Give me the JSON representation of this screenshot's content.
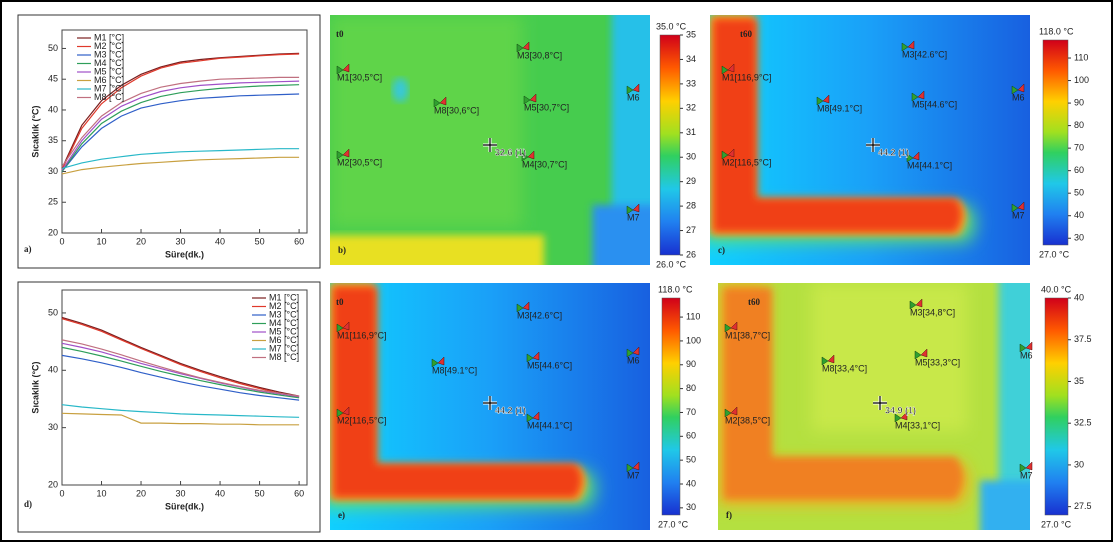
{
  "chart_data": [
    {
      "type": "line",
      "panel_label": "a)",
      "x_label": "Süre(dk.)",
      "y_label": "Sıcaklık (°C)",
      "x": [
        0,
        5,
        10,
        15,
        20,
        25,
        30,
        35,
        40,
        45,
        50,
        55,
        60
      ],
      "xlim": [
        0,
        62
      ],
      "xticks": [
        0,
        10,
        20,
        30,
        40,
        50,
        60
      ],
      "ylim": [
        20,
        53
      ],
      "yticks": [
        20,
        25,
        30,
        35,
        40,
        45,
        50
      ],
      "legend": "upper left",
      "series": [
        {
          "name": "M1 [°C]",
          "color": "#7a1f1f",
          "values": [
            30.5,
            37.5,
            41.5,
            44,
            45.8,
            47,
            47.8,
            48.2,
            48.5,
            48.7,
            48.9,
            49.1,
            49.2
          ]
        },
        {
          "name": "M2 [°C]",
          "color": "#e0392b",
          "values": [
            30.3,
            37,
            41,
            43.6,
            45.5,
            46.8,
            47.6,
            48,
            48.4,
            48.6,
            48.8,
            49,
            49.1
          ]
        },
        {
          "name": "M3 [°C]",
          "color": "#2f5fc8",
          "values": [
            30,
            34,
            37,
            39,
            40.3,
            41,
            41.5,
            41.9,
            42.1,
            42.3,
            42.4,
            42.5,
            42.6
          ]
        },
        {
          "name": "M4 [°C]",
          "color": "#2e9e5a",
          "values": [
            30,
            34.5,
            37.8,
            39.8,
            41.2,
            42.2,
            42.8,
            43.2,
            43.5,
            43.7,
            43.9,
            44,
            44.1
          ]
        },
        {
          "name": "M5 [°C]",
          "color": "#a050c8",
          "values": [
            30.2,
            35,
            38.5,
            40.6,
            42,
            43,
            43.6,
            44,
            44.2,
            44.4,
            44.5,
            44.6,
            44.7
          ]
        },
        {
          "name": "M6 [°C]",
          "color": "#c8a040",
          "values": [
            29.6,
            30.3,
            30.7,
            31,
            31.3,
            31.5,
            31.7,
            31.9,
            32,
            32.1,
            32.2,
            32.3,
            32.3
          ]
        },
        {
          "name": "M7 [°C]",
          "color": "#28b8c8",
          "values": [
            30.5,
            31.4,
            32,
            32.4,
            32.8,
            33,
            33.2,
            33.3,
            33.4,
            33.5,
            33.6,
            33.7,
            33.7
          ]
        },
        {
          "name": "M8 [°C]",
          "color": "#c07080",
          "values": [
            30.8,
            35.5,
            39,
            41.2,
            42.7,
            43.7,
            44.3,
            44.7,
            45,
            45.1,
            45.2,
            45.3,
            45.3
          ]
        }
      ]
    },
    {
      "type": "line",
      "panel_label": "d)",
      "x_label": "Süre(dk.)",
      "y_label": "Sıcaklık (°C)",
      "x": [
        0,
        5,
        10,
        15,
        20,
        25,
        30,
        35,
        40,
        45,
        50,
        55,
        60
      ],
      "xlim": [
        0,
        62
      ],
      "xticks": [
        0,
        10,
        20,
        30,
        40,
        50,
        60
      ],
      "ylim": [
        20,
        54
      ],
      "yticks": [
        20,
        30,
        40,
        50
      ],
      "legend": "upper right",
      "series": [
        {
          "name": "M1 [°C]",
          "color": "#7a1f1f",
          "values": [
            49.2,
            48.2,
            47,
            45.5,
            44,
            42.6,
            41.2,
            40,
            38.9,
            37.9,
            37,
            36.2,
            35.5
          ]
        },
        {
          "name": "M2 [°C]",
          "color": "#e0392b",
          "values": [
            49,
            48,
            46.8,
            45.3,
            43.8,
            42.4,
            41,
            39.8,
            38.7,
            37.7,
            36.8,
            36,
            35.3
          ]
        },
        {
          "name": "M3 [°C]",
          "color": "#2f5fc8",
          "values": [
            42.6,
            42,
            41.3,
            40.5,
            39.6,
            38.8,
            38,
            37.3,
            36.7,
            36.1,
            35.6,
            35.2,
            34.8
          ]
        },
        {
          "name": "M4 [°C]",
          "color": "#2e9e5a",
          "values": [
            44,
            43.3,
            42.5,
            41.6,
            40.7,
            39.8,
            39,
            38.2,
            37.5,
            36.8,
            36.2,
            35.7,
            35.2
          ]
        },
        {
          "name": "M5 [°C]",
          "color": "#a050c8",
          "values": [
            44.7,
            44,
            43.2,
            42.2,
            41.2,
            40.3,
            39.4,
            38.6,
            37.8,
            37.1,
            36.4,
            35.9,
            35.4
          ]
        },
        {
          "name": "M6 [°C]",
          "color": "#c8a040",
          "values": [
            32.5,
            32.4,
            32.3,
            32.2,
            30.8,
            30.8,
            30.7,
            30.7,
            30.6,
            30.6,
            30.5,
            30.5,
            30.5
          ]
        },
        {
          "name": "M7 [°C]",
          "color": "#28b8c8",
          "values": [
            34,
            33.6,
            33.3,
            33,
            32.8,
            32.6,
            32.4,
            32.3,
            32.2,
            32.1,
            32,
            31.9,
            31.8
          ]
        },
        {
          "name": "M8 [°C]",
          "color": "#c07080",
          "values": [
            45.3,
            44.6,
            43.7,
            42.7,
            41.6,
            40.6,
            39.6,
            38.7,
            37.9,
            37.2,
            36.5,
            36,
            35.5
          ]
        }
      ]
    }
  ],
  "thermal_panels": [
    {
      "panel_label": "b)",
      "time_label": "t0",
      "cursor_label": "32.6 (1)",
      "markers": [
        "M1[30,5°C]",
        "M2[30,5°C]",
        "M3[30,8°C]",
        "M4[30,7°C]",
        "M5[30,7°C]",
        "M6",
        "M7",
        "M8[30,6°C]"
      ],
      "colorbar": {
        "max_label": "35.0 °C",
        "min_label": "26.0 °C",
        "lim": [
          26,
          35
        ],
        "ticks": [
          26,
          27,
          28,
          29,
          30,
          31,
          32,
          33,
          34,
          35
        ]
      }
    },
    {
      "panel_label": "c)",
      "time_label": "t60",
      "cursor_label": "44.2 (1)",
      "markers": [
        "M1[116,9°C]",
        "M2[116,5°C]",
        "M3[42.6°C]",
        "M4[44.1°C]",
        "M5[44.6°C]",
        "M6",
        "M7",
        "M8[49.1°C]"
      ],
      "colorbar": {
        "max_label": "118.0 °C",
        "min_label": "27.0 °C",
        "lim": [
          27,
          118
        ],
        "ticks": [
          30,
          40,
          50,
          60,
          70,
          80,
          90,
          100,
          110
        ]
      }
    },
    {
      "panel_label": "e)",
      "time_label": "t0",
      "cursor_label": "44.2 (1)",
      "markers": [
        "M1[116,9°C]",
        "M2[116,5°C]",
        "M3[42.6°C]",
        "M4[44.1°C]",
        "M5[44.6°C]",
        "M6",
        "M7",
        "M8[49.1°C]"
      ],
      "colorbar": {
        "max_label": "118.0 °C",
        "min_label": "27.0 °C",
        "lim": [
          27,
          118
        ],
        "ticks": [
          30,
          40,
          50,
          60,
          70,
          80,
          90,
          100,
          110
        ]
      }
    },
    {
      "panel_label": "f)",
      "time_label": "t60",
      "cursor_label": "34.9 (1)",
      "markers": [
        "M1[38,7°C]",
        "M2[38,5°C]",
        "M3[34,8°C]",
        "M4[33,1°C]",
        "M5[33,3°C]",
        "M6",
        "M7",
        "M8[33,4°C]"
      ],
      "colorbar": {
        "max_label": "40.0 °C",
        "min_label": "27.0 °C",
        "lim": [
          27,
          40
        ],
        "ticks": [
          27.5,
          30,
          32.5,
          35,
          37.5,
          40
        ]
      }
    }
  ]
}
